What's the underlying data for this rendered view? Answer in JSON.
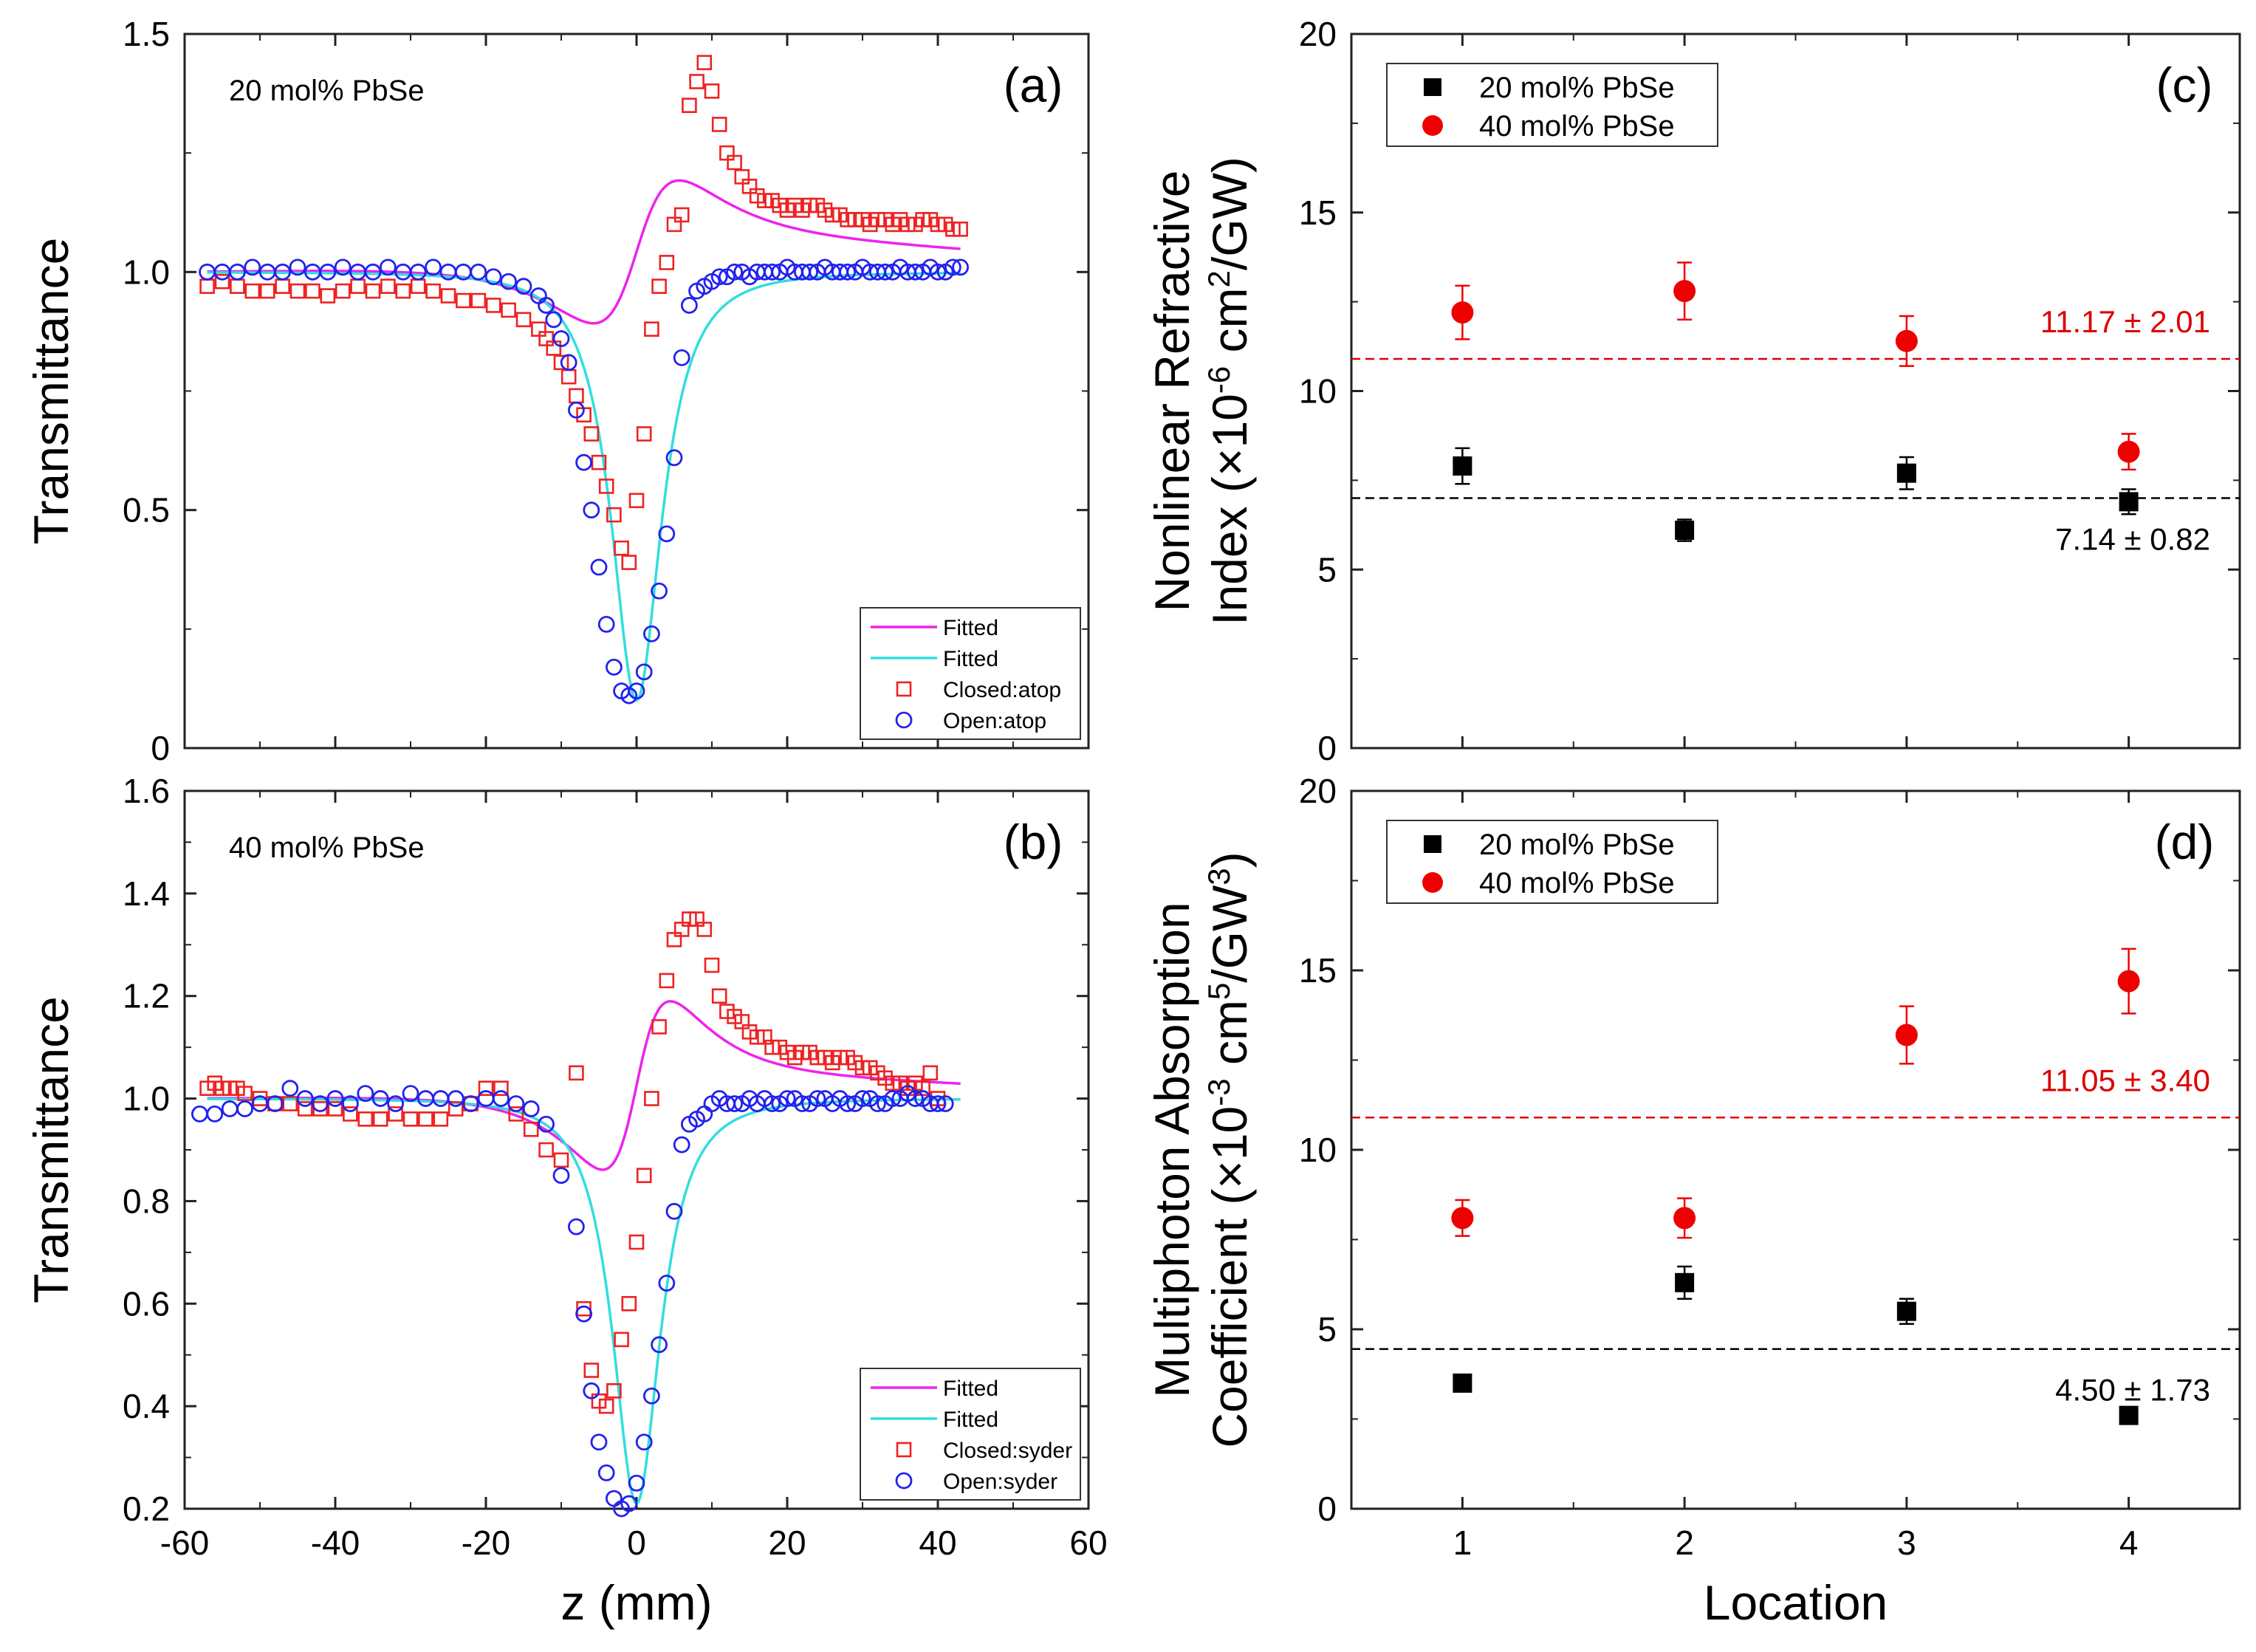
{
  "chart_data": [
    {
      "id": "a",
      "type": "scatter",
      "panel_label": "(a)",
      "annotation": "20 mol% PbSe",
      "ylabel": "Transmittance",
      "xlabel": "",
      "xlim": [
        -60,
        60
      ],
      "ylim": [
        0,
        1.5
      ],
      "yticks": [
        0,
        0.5,
        1.0,
        1.5
      ],
      "ytick_labels": [
        "0",
        "0.5",
        "1.0",
        "1.5"
      ],
      "xticks": [
        -60,
        -40,
        -20,
        0,
        20,
        40,
        60
      ],
      "xtick_labels": [
        "",
        "",
        "",
        "",
        "",
        "",
        ""
      ],
      "legend_position": "bottom-right",
      "legend": [
        {
          "label": "Fitted",
          "kind": "line",
          "color": "#ee22ee"
        },
        {
          "label": "Fitted",
          "kind": "line",
          "color": "#33dddd"
        },
        {
          "label": "Closed:atop",
          "kind": "square",
          "color": "#ee2222"
        },
        {
          "label": "Open:atop",
          "kind": "circle",
          "color": "#2222ee"
        }
      ],
      "model": {
        "closed": {
          "center": 0,
          "amp": 0.72,
          "w": 6.5,
          "tail_amp": 0.05,
          "tail_w": 50,
          "tail_c": 20
        },
        "open": {
          "center": 0,
          "depth": 0.9,
          "w": 4.2
        }
      },
      "series": [
        {
          "name": "Closed:atop",
          "marker": "square",
          "color": "#ee2222",
          "x": [
            -57,
            -55,
            -53,
            -51,
            -49,
            -47,
            -45,
            -43,
            -41,
            -39,
            -37,
            -35,
            -33,
            -31,
            -29,
            -27,
            -25,
            -23,
            -21,
            -19,
            -17,
            -15,
            -13,
            -12,
            -11,
            -10,
            -9,
            -8,
            -7,
            -6,
            -5,
            -4,
            -3,
            -2,
            -1,
            0,
            1,
            2,
            3,
            4,
            5,
            6,
            7,
            8,
            9,
            10,
            11,
            12,
            13,
            14,
            15,
            16,
            17,
            18,
            19,
            20,
            21,
            22,
            23,
            24,
            25,
            26,
            27,
            28,
            29,
            30,
            31,
            32,
            33,
            34,
            35,
            36,
            37,
            38,
            39,
            40,
            41,
            42,
            43
          ],
          "y": [
            0.97,
            0.98,
            0.97,
            0.96,
            0.96,
            0.97,
            0.96,
            0.96,
            0.95,
            0.96,
            0.97,
            0.96,
            0.97,
            0.96,
            0.97,
            0.96,
            0.95,
            0.94,
            0.94,
            0.93,
            0.92,
            0.9,
            0.88,
            0.86,
            0.84,
            0.81,
            0.78,
            0.74,
            0.7,
            0.66,
            0.6,
            0.55,
            0.49,
            0.42,
            0.39,
            0.52,
            0.66,
            0.88,
            0.97,
            1.02,
            1.1,
            1.12,
            1.35,
            1.4,
            1.44,
            1.38,
            1.31,
            1.25,
            1.23,
            1.2,
            1.18,
            1.16,
            1.15,
            1.15,
            1.14,
            1.13,
            1.14,
            1.13,
            1.14,
            1.14,
            1.13,
            1.12,
            1.12,
            1.11,
            1.11,
            1.11,
            1.1,
            1.11,
            1.11,
            1.1,
            1.11,
            1.1,
            1.1,
            1.11,
            1.11,
            1.1,
            1.1,
            1.09,
            1.09
          ]
        },
        {
          "name": "Open:atop",
          "marker": "circle",
          "color": "#2222ee",
          "x": [
            -57,
            -55,
            -53,
            -51,
            -49,
            -47,
            -45,
            -43,
            -41,
            -39,
            -37,
            -35,
            -33,
            -31,
            -29,
            -27,
            -25,
            -23,
            -21,
            -19,
            -17,
            -15,
            -13,
            -12,
            -11,
            -10,
            -9,
            -8,
            -7,
            -6,
            -5,
            -4,
            -3,
            -2,
            -1,
            0,
            1,
            2,
            3,
            4,
            5,
            6,
            7,
            8,
            9,
            10,
            11,
            12,
            13,
            14,
            15,
            16,
            17,
            18,
            19,
            20,
            21,
            22,
            23,
            24,
            25,
            26,
            27,
            28,
            29,
            30,
            31,
            32,
            33,
            34,
            35,
            36,
            37,
            38,
            39,
            40,
            41,
            42,
            43
          ],
          "y": [
            1.0,
            1.0,
            1.0,
            1.01,
            1.0,
            1.0,
            1.01,
            1.0,
            1.0,
            1.01,
            1.0,
            1.0,
            1.01,
            1.0,
            1.0,
            1.01,
            1.0,
            1.0,
            1.0,
            0.99,
            0.98,
            0.97,
            0.95,
            0.93,
            0.9,
            0.86,
            0.81,
            0.71,
            0.6,
            0.5,
            0.38,
            0.26,
            0.17,
            0.12,
            0.11,
            0.12,
            0.16,
            0.24,
            0.33,
            0.45,
            0.61,
            0.82,
            0.93,
            0.96,
            0.97,
            0.98,
            0.99,
            0.99,
            1.0,
            1.0,
            0.99,
            1.0,
            1.0,
            1.0,
            1.0,
            1.01,
            1.0,
            1.0,
            1.0,
            1.0,
            1.01,
            1.0,
            1.0,
            1.0,
            1.0,
            1.01,
            1.0,
            1.0,
            1.0,
            1.0,
            1.01,
            1.0,
            1.0,
            1.0,
            1.01,
            1.0,
            1.0,
            1.01,
            1.01
          ]
        }
      ]
    },
    {
      "id": "b",
      "type": "scatter",
      "panel_label": "(b)",
      "annotation": "40 mol% PbSe",
      "ylabel": "Transmittance",
      "xlabel": "z (mm)",
      "xlim": [
        -60,
        60
      ],
      "ylim": [
        0.2,
        1.6
      ],
      "yticks": [
        0.2,
        0.4,
        0.6,
        0.8,
        1.0,
        1.2,
        1.4,
        1.6
      ],
      "ytick_labels": [
        "0.2",
        "0.4",
        "0.6",
        "0.8",
        "1.0",
        "1.2",
        "1.4",
        "1.6"
      ],
      "xticks": [
        -60,
        -40,
        -20,
        0,
        20,
        40,
        60
      ],
      "xtick_labels": [
        "-60",
        "-40",
        "-20",
        "0",
        "20",
        "40",
        "60"
      ],
      "legend_position": "bottom-right",
      "legend": [
        {
          "label": "Fitted",
          "kind": "line",
          "color": "#ee22ee"
        },
        {
          "label": "Fitted",
          "kind": "line",
          "color": "#33dddd"
        },
        {
          "label": "Closed:syder",
          "kind": "square",
          "color": "#ee2222"
        },
        {
          "label": "Open:syder",
          "kind": "circle",
          "color": "#2222ee"
        }
      ],
      "model": {
        "closed": {
          "center": 0,
          "amp": 0.8,
          "w": 5.2,
          "tail_amp": 0.03,
          "tail_w": 50,
          "tail_c": 20
        },
        "open": {
          "center": 0,
          "depth": 0.79,
          "w": 4.0
        }
      },
      "series": [
        {
          "name": "Closed:syder",
          "marker": "square",
          "color": "#ee2222",
          "x": [
            -57,
            -56,
            -55,
            -54,
            -53,
            -52,
            -50,
            -48,
            -46,
            -44,
            -42,
            -40,
            -38,
            -36,
            -34,
            -32,
            -30,
            -28,
            -26,
            -24,
            -22,
            -20,
            -18,
            -16,
            -14,
            -12,
            -10,
            -8,
            -7,
            -6,
            -5,
            -4,
            -3,
            -2,
            -1,
            0,
            1,
            2,
            3,
            4,
            5,
            6,
            7,
            8,
            9,
            10,
            11,
            12,
            13,
            14,
            15,
            16,
            17,
            18,
            19,
            20,
            21,
            22,
            23,
            24,
            25,
            26,
            27,
            28,
            29,
            30,
            31,
            32,
            33,
            34,
            35,
            36,
            37,
            38,
            39,
            40
          ],
          "y": [
            1.02,
            1.03,
            1.02,
            1.02,
            1.02,
            1.01,
            1.0,
            0.99,
            0.99,
            0.98,
            0.98,
            0.98,
            0.97,
            0.96,
            0.96,
            0.97,
            0.96,
            0.96,
            0.96,
            0.98,
            0.99,
            1.02,
            1.02,
            0.97,
            0.94,
            0.9,
            0.88,
            1.05,
            0.59,
            0.47,
            0.41,
            0.4,
            0.43,
            0.53,
            0.6,
            0.72,
            0.85,
            1.0,
            1.14,
            1.23,
            1.31,
            1.33,
            1.35,
            1.35,
            1.33,
            1.26,
            1.2,
            1.17,
            1.16,
            1.15,
            1.13,
            1.12,
            1.12,
            1.1,
            1.1,
            1.09,
            1.08,
            1.09,
            1.09,
            1.08,
            1.08,
            1.07,
            1.08,
            1.08,
            1.07,
            1.06,
            1.06,
            1.05,
            1.04,
            1.03,
            1.03,
            1.02,
            1.03,
            1.02,
            1.05,
            1.0
          ]
        },
        {
          "name": "Open:syder",
          "marker": "circle",
          "color": "#2222ee",
          "x": [
            -58,
            -56,
            -54,
            -52,
            -50,
            -48,
            -46,
            -44,
            -42,
            -40,
            -38,
            -36,
            -34,
            -32,
            -30,
            -28,
            -26,
            -24,
            -22,
            -20,
            -18,
            -16,
            -14,
            -12,
            -10,
            -8,
            -7,
            -6,
            -5,
            -4,
            -3,
            -2,
            -1,
            0,
            1,
            2,
            3,
            4,
            5,
            6,
            7,
            8,
            9,
            10,
            11,
            12,
            13,
            14,
            15,
            16,
            17,
            18,
            19,
            20,
            21,
            22,
            23,
            24,
            25,
            26,
            27,
            28,
            29,
            30,
            31,
            32,
            33,
            34,
            35,
            36,
            37,
            38,
            39,
            40,
            41
          ],
          "y": [
            0.97,
            0.97,
            0.98,
            0.98,
            0.99,
            0.99,
            1.02,
            1.0,
            0.99,
            1.0,
            0.99,
            1.01,
            1.0,
            0.99,
            1.01,
            1.0,
            1.0,
            1.0,
            0.99,
            1.0,
            1.0,
            0.99,
            0.98,
            0.95,
            0.85,
            0.75,
            0.58,
            0.43,
            0.33,
            0.27,
            0.22,
            0.2,
            0.21,
            0.25,
            0.33,
            0.42,
            0.52,
            0.64,
            0.78,
            0.91,
            0.95,
            0.96,
            0.97,
            0.99,
            1.0,
            0.99,
            0.99,
            0.99,
            1.0,
            0.99,
            1.0,
            0.99,
            0.99,
            1.0,
            1.0,
            0.99,
            0.99,
            1.0,
            1.0,
            0.99,
            1.0,
            0.99,
            0.99,
            1.0,
            1.0,
            0.99,
            0.99,
            1.0,
            1.0,
            1.01,
            1.0,
            1.0,
            0.99,
            0.99,
            0.99
          ]
        }
      ]
    },
    {
      "id": "c",
      "type": "scatter",
      "panel_label": "(c)",
      "ylabel_lines": [
        "Nonlinear Refractive",
        "Index (×10",
        "-6",
        " cm",
        "2",
        "/GW)"
      ],
      "xlabel": "",
      "xlim": [
        0.5,
        4.5
      ],
      "ylim": [
        0,
        20
      ],
      "yticks": [
        0,
        5,
        10,
        15,
        20
      ],
      "ytick_labels": [
        "0",
        "5",
        "10",
        "15",
        "20"
      ],
      "xticks": [
        1,
        2,
        3,
        4
      ],
      "xtick_labels": [
        "",
        "",
        "",
        ""
      ],
      "legend_position": "top-left",
      "legend": [
        {
          "label": "20 mol% PbSe",
          "kind": "square",
          "color": "#000000"
        },
        {
          "label": "40 mol% PbSe",
          "kind": "circle",
          "color": "#ee0000"
        }
      ],
      "reference_lines": [
        {
          "value": 10.9,
          "color": "#dd0000",
          "label": "11.17 ± 2.01"
        },
        {
          "value": 7.0,
          "color": "#000000",
          "label": "7.14 ± 0.82"
        }
      ],
      "series": [
        {
          "name": "20 mol% PbSe",
          "marker": "square",
          "color": "#000000",
          "x": [
            1,
            2,
            3,
            4
          ],
          "y": [
            7.9,
            6.1,
            7.7,
            6.9
          ],
          "err": [
            0.5,
            0.3,
            0.45,
            0.35
          ]
        },
        {
          "name": "40 mol% PbSe",
          "marker": "circle",
          "color": "#ee0000",
          "x": [
            1,
            2,
            3,
            4
          ],
          "y": [
            12.2,
            12.8,
            11.4,
            8.3
          ],
          "err": [
            0.75,
            0.8,
            0.7,
            0.5
          ]
        }
      ]
    },
    {
      "id": "d",
      "type": "scatter",
      "panel_label": "(d)",
      "ylabel_lines": [
        "Multiphoton Absorption",
        "Coefficient (×10",
        "-3",
        " cm",
        "5",
        "/GW",
        "3",
        ")"
      ],
      "xlabel": "Location",
      "xlim": [
        0.5,
        4.5
      ],
      "ylim": [
        0,
        20
      ],
      "yticks": [
        0,
        5,
        10,
        15,
        20
      ],
      "ytick_labels": [
        "0",
        "5",
        "10",
        "15",
        "20"
      ],
      "xticks": [
        1,
        2,
        3,
        4
      ],
      "xtick_labels": [
        "1",
        "2",
        "3",
        "4"
      ],
      "legend_position": "top-left",
      "legend": [
        {
          "label": "20 mol% PbSe",
          "kind": "square",
          "color": "#000000"
        },
        {
          "label": "40 mol% PbSe",
          "kind": "circle",
          "color": "#ee0000"
        }
      ],
      "reference_lines": [
        {
          "value": 10.9,
          "color": "#dd0000",
          "label": "11.05 ± 3.40"
        },
        {
          "value": 4.45,
          "color": "#000000",
          "label": "4.50 ± 1.73"
        }
      ],
      "series": [
        {
          "name": "20 mol% PbSe",
          "marker": "square",
          "color": "#000000",
          "x": [
            1,
            2,
            3,
            4
          ],
          "y": [
            3.5,
            6.3,
            5.5,
            2.6
          ],
          "err": [
            0.15,
            0.45,
            0.35,
            0.15
          ]
        },
        {
          "name": "40 mol% PbSe",
          "marker": "circle",
          "color": "#ee0000",
          "x": [
            1,
            2,
            3,
            4
          ],
          "y": [
            8.1,
            8.1,
            13.2,
            14.7
          ],
          "err": [
            0.5,
            0.55,
            0.8,
            0.9
          ]
        }
      ]
    }
  ]
}
